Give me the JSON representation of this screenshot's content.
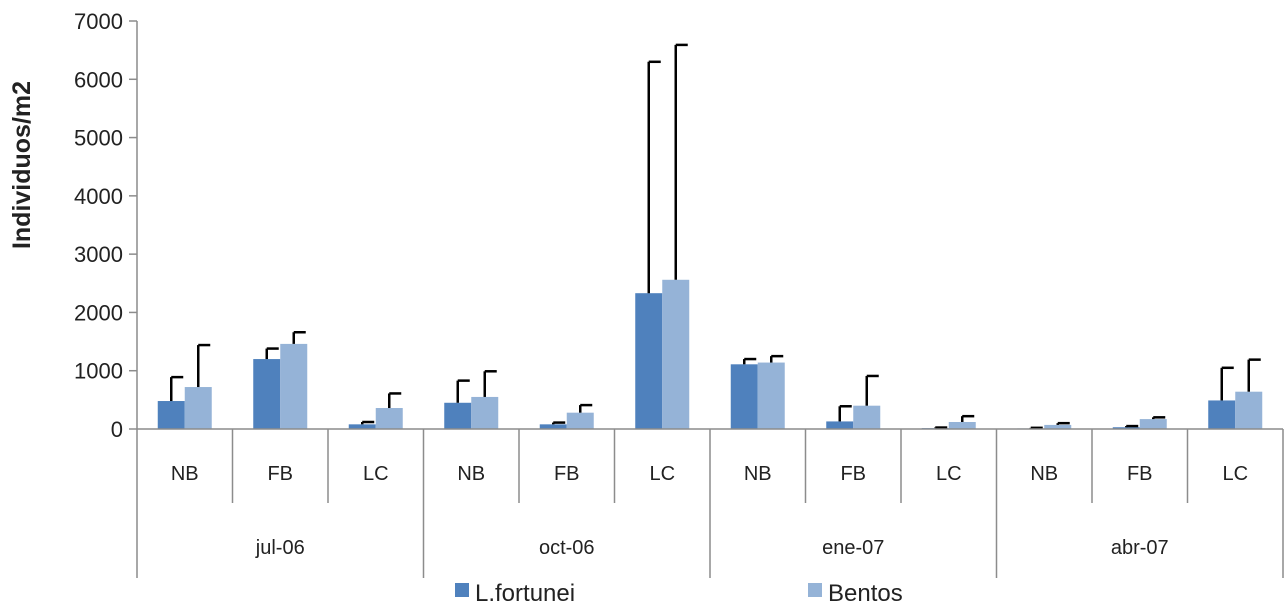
{
  "colors": {
    "l_fortunei": "#4f81bd",
    "bentos": "#95b3d7",
    "error_bar": "#000000",
    "axis": "#8c8c8c"
  },
  "chart_data": {
    "type": "bar",
    "ylabel": "Individuos/m2",
    "xlabel": "",
    "ylim": [
      0,
      7000
    ],
    "yticks": [
      0,
      1000,
      2000,
      3000,
      4000,
      5000,
      6000,
      7000
    ],
    "grid": false,
    "legend_position": "bottom",
    "groups": [
      "jul-06",
      "oct-06",
      "ene-07",
      "abr-07"
    ],
    "sites": [
      "NB",
      "FB",
      "LC"
    ],
    "categories": [
      "NB",
      "FB",
      "LC",
      "NB",
      "FB",
      "LC",
      "NB",
      "FB",
      "LC",
      "NB",
      "FB",
      "LC"
    ],
    "series": [
      {
        "name": "L.fortunei",
        "values": [
          480,
          1200,
          80,
          450,
          80,
          2330,
          1110,
          130,
          15,
          10,
          30,
          490
        ],
        "error": [
          410,
          180,
          40,
          380,
          30,
          3970,
          90,
          260,
          10,
          10,
          20,
          560
        ]
      },
      {
        "name": "Bentos",
        "values": [
          720,
          1460,
          360,
          550,
          280,
          2560,
          1140,
          400,
          120,
          70,
          170,
          640
        ],
        "error": [
          720,
          200,
          250,
          440,
          130,
          4030,
          110,
          510,
          100,
          30,
          30,
          550
        ]
      }
    ]
  }
}
